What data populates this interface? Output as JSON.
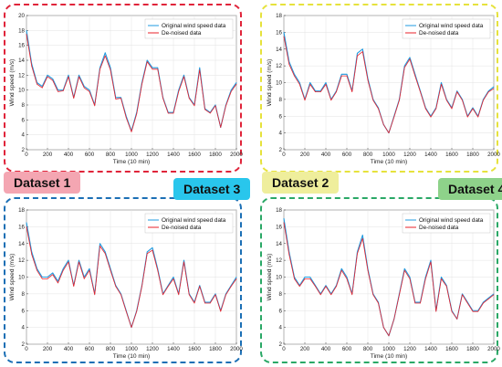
{
  "colors": {
    "original": "#1f9be0",
    "denoised": "#e8202a",
    "panel1": "#e0243a",
    "panel2": "#e6e23c",
    "panel3": "#1b6fb5",
    "panel4": "#2aa866",
    "tag1": "#f4a6b2",
    "tag2": "#efee9c",
    "tag3": "#29c6ec",
    "tag4": "#8ed28a"
  },
  "chart_data": [
    {
      "type": "line",
      "label": "Dataset 1",
      "xlabel": "Time (10 min)",
      "ylabel": "Wind speed (m/s)",
      "xlim": [
        0,
        2000
      ],
      "ylim": [
        2,
        20
      ],
      "xticks": [
        "0",
        "200",
        "400",
        "600",
        "800",
        "1000",
        "1200",
        "1400",
        "1600",
        "1800",
        "2000"
      ],
      "yticks": [
        "2",
        "4",
        "6",
        "8",
        "10",
        "12",
        "14",
        "16",
        "18",
        "20"
      ],
      "legend": "top-right",
      "grid": true,
      "x": [
        0,
        50,
        100,
        150,
        200,
        250,
        300,
        350,
        400,
        450,
        500,
        550,
        600,
        650,
        700,
        750,
        800,
        850,
        900,
        950,
        1000,
        1050,
        1100,
        1150,
        1200,
        1250,
        1300,
        1350,
        1400,
        1450,
        1500,
        1550,
        1600,
        1650,
        1700,
        1750,
        1800,
        1850,
        1900,
        1950,
        2000
      ],
      "series": [
        {
          "name": "Original wind speed data",
          "values": [
            18,
            13.5,
            11,
            10.5,
            12,
            11.5,
            10,
            10,
            12,
            9,
            12,
            10.5,
            10,
            8,
            13,
            15,
            13,
            9,
            9,
            6.5,
            4.5,
            7,
            11,
            14,
            13,
            13,
            9,
            7,
            7,
            10,
            12,
            9,
            8,
            13,
            7.5,
            7,
            8,
            5,
            8,
            10,
            11
          ]
        },
        {
          "name": "De-noised data",
          "values": [
            17.5,
            13.2,
            10.8,
            10.3,
            11.8,
            11.3,
            9.8,
            9.9,
            11.8,
            8.9,
            11.8,
            10.3,
            9.8,
            7.9,
            12.8,
            14.6,
            12.7,
            8.8,
            8.9,
            6.3,
            4.4,
            6.8,
            10.8,
            13.8,
            12.8,
            12.8,
            8.9,
            6.9,
            6.9,
            9.8,
            11.8,
            8.9,
            7.9,
            12.7,
            7.4,
            6.9,
            7.9,
            5,
            7.9,
            9.8,
            10.8
          ]
        }
      ]
    },
    {
      "type": "line",
      "label": "Dataset 2",
      "xlabel": "Time (10 min)",
      "ylabel": "Wind speed (m/s)",
      "xlim": [
        0,
        2000
      ],
      "ylim": [
        2,
        18
      ],
      "xticks": [
        "0",
        "200",
        "400",
        "600",
        "800",
        "1000",
        "1200",
        "1400",
        "1600",
        "1800",
        "2000"
      ],
      "yticks": [
        "2",
        "4",
        "6",
        "8",
        "10",
        "12",
        "14",
        "16",
        "18"
      ],
      "legend": "top-right",
      "grid": true,
      "x": [
        0,
        50,
        100,
        150,
        200,
        250,
        300,
        350,
        400,
        450,
        500,
        550,
        600,
        650,
        700,
        750,
        800,
        850,
        900,
        950,
        1000,
        1050,
        1100,
        1150,
        1200,
        1250,
        1300,
        1350,
        1400,
        1450,
        1500,
        1550,
        1600,
        1650,
        1700,
        1750,
        1800,
        1850,
        1900,
        1950,
        2000
      ],
      "series": [
        {
          "name": "Original wind speed data",
          "values": [
            16,
            12.5,
            11,
            10,
            8,
            10,
            9,
            9,
            10,
            8,
            9,
            11,
            11,
            9,
            13.5,
            14,
            10.5,
            8,
            7,
            5,
            4,
            6,
            8,
            12,
            13,
            11,
            9,
            7,
            6,
            7,
            10,
            8,
            7,
            9,
            8,
            6,
            7,
            6,
            8,
            9,
            9.5
          ]
        },
        {
          "name": "De-noised data",
          "values": [
            15.5,
            12.2,
            10.8,
            9.8,
            7.9,
            9.8,
            8.9,
            8.9,
            9.8,
            7.9,
            8.9,
            10.8,
            10.8,
            8.9,
            13.2,
            13.7,
            10.3,
            7.9,
            6.9,
            5,
            4,
            5.9,
            7.9,
            11.8,
            12.8,
            10.8,
            8.9,
            6.9,
            5.9,
            6.9,
            9.8,
            7.9,
            6.9,
            8.9,
            7.9,
            5.9,
            6.9,
            5.9,
            7.9,
            8.9,
            9.3
          ]
        }
      ]
    },
    {
      "type": "line",
      "label": "Dataset 3",
      "xlabel": "Time (10 min)",
      "ylabel": "Wind speed (m/s)",
      "xlim": [
        0,
        2000
      ],
      "ylim": [
        2,
        18
      ],
      "xticks": [
        "0",
        "200",
        "400",
        "600",
        "800",
        "1000",
        "1200",
        "1400",
        "1600",
        "1800",
        "2000"
      ],
      "yticks": [
        "2",
        "4",
        "6",
        "8",
        "10",
        "12",
        "14",
        "16",
        "18"
      ],
      "legend": "top-right",
      "grid": true,
      "x": [
        0,
        50,
        100,
        150,
        200,
        250,
        300,
        350,
        400,
        450,
        500,
        550,
        600,
        650,
        700,
        750,
        800,
        850,
        900,
        950,
        1000,
        1050,
        1100,
        1150,
        1200,
        1250,
        1300,
        1350,
        1400,
        1450,
        1500,
        1550,
        1600,
        1650,
        1700,
        1750,
        1800,
        1850,
        1900,
        1950,
        2000
      ],
      "series": [
        {
          "name": "Original wind speed data",
          "values": [
            16.5,
            13,
            11,
            10,
            10,
            10.5,
            9.5,
            11,
            12,
            9,
            12,
            10,
            11,
            8,
            14,
            13,
            11,
            9,
            8,
            6,
            4,
            6,
            9,
            13,
            13.5,
            11,
            8,
            9,
            10,
            8,
            12,
            8,
            7,
            9,
            7,
            7,
            8,
            6,
            8,
            9,
            10
          ]
        },
        {
          "name": "De-noised data",
          "values": [
            16,
            12.7,
            10.8,
            9.8,
            9.8,
            10.3,
            9.3,
            10.8,
            11.8,
            8.9,
            11.8,
            9.8,
            10.8,
            7.9,
            13.7,
            12.8,
            10.8,
            8.9,
            7.9,
            5.9,
            4,
            5.9,
            8.9,
            12.8,
            13.2,
            10.8,
            7.9,
            8.9,
            9.8,
            7.9,
            11.8,
            7.9,
            6.9,
            8.9,
            6.9,
            6.9,
            7.9,
            5.9,
            7.9,
            8.9,
            9.8
          ]
        }
      ]
    },
    {
      "type": "line",
      "label": "Dataset 4",
      "xlabel": "Time (10 min)",
      "ylabel": "Wind speed (m/s)",
      "xlim": [
        0,
        2000
      ],
      "ylim": [
        2,
        18
      ],
      "xticks": [
        "0",
        "200",
        "400",
        "600",
        "800",
        "1000",
        "1200",
        "1400",
        "1600",
        "1800",
        "2000"
      ],
      "yticks": [
        "2",
        "4",
        "6",
        "8",
        "10",
        "12",
        "14",
        "16",
        "18"
      ],
      "legend": "top-right",
      "grid": true,
      "x": [
        0,
        50,
        100,
        150,
        200,
        250,
        300,
        350,
        400,
        450,
        500,
        550,
        600,
        650,
        700,
        750,
        800,
        850,
        900,
        950,
        1000,
        1050,
        1100,
        1150,
        1200,
        1250,
        1300,
        1350,
        1400,
        1450,
        1500,
        1550,
        1600,
        1650,
        1700,
        1750,
        1800,
        1850,
        1900,
        1950,
        2000
      ],
      "series": [
        {
          "name": "Original wind speed data",
          "values": [
            17,
            13,
            10,
            9,
            10,
            10,
            9,
            8,
            9,
            8,
            9,
            11,
            10,
            8,
            13,
            15,
            11,
            8,
            7,
            4,
            3,
            5,
            8,
            11,
            10,
            7,
            7,
            10,
            12,
            6,
            10,
            9,
            6,
            5,
            8,
            7,
            6,
            6,
            7,
            7.5,
            8
          ]
        },
        {
          "name": "De-noised data",
          "values": [
            16.5,
            12.7,
            9.8,
            8.9,
            9.8,
            9.8,
            8.9,
            7.9,
            8.9,
            7.9,
            8.9,
            10.8,
            9.8,
            7.9,
            12.8,
            14.6,
            10.8,
            7.9,
            6.9,
            4,
            3,
            5,
            7.9,
            10.8,
            9.8,
            6.9,
            6.9,
            9.8,
            11.8,
            5.9,
            9.8,
            8.9,
            5.9,
            5,
            7.9,
            6.9,
            5.9,
            5.9,
            6.9,
            7.4,
            7.9
          ]
        }
      ]
    }
  ]
}
